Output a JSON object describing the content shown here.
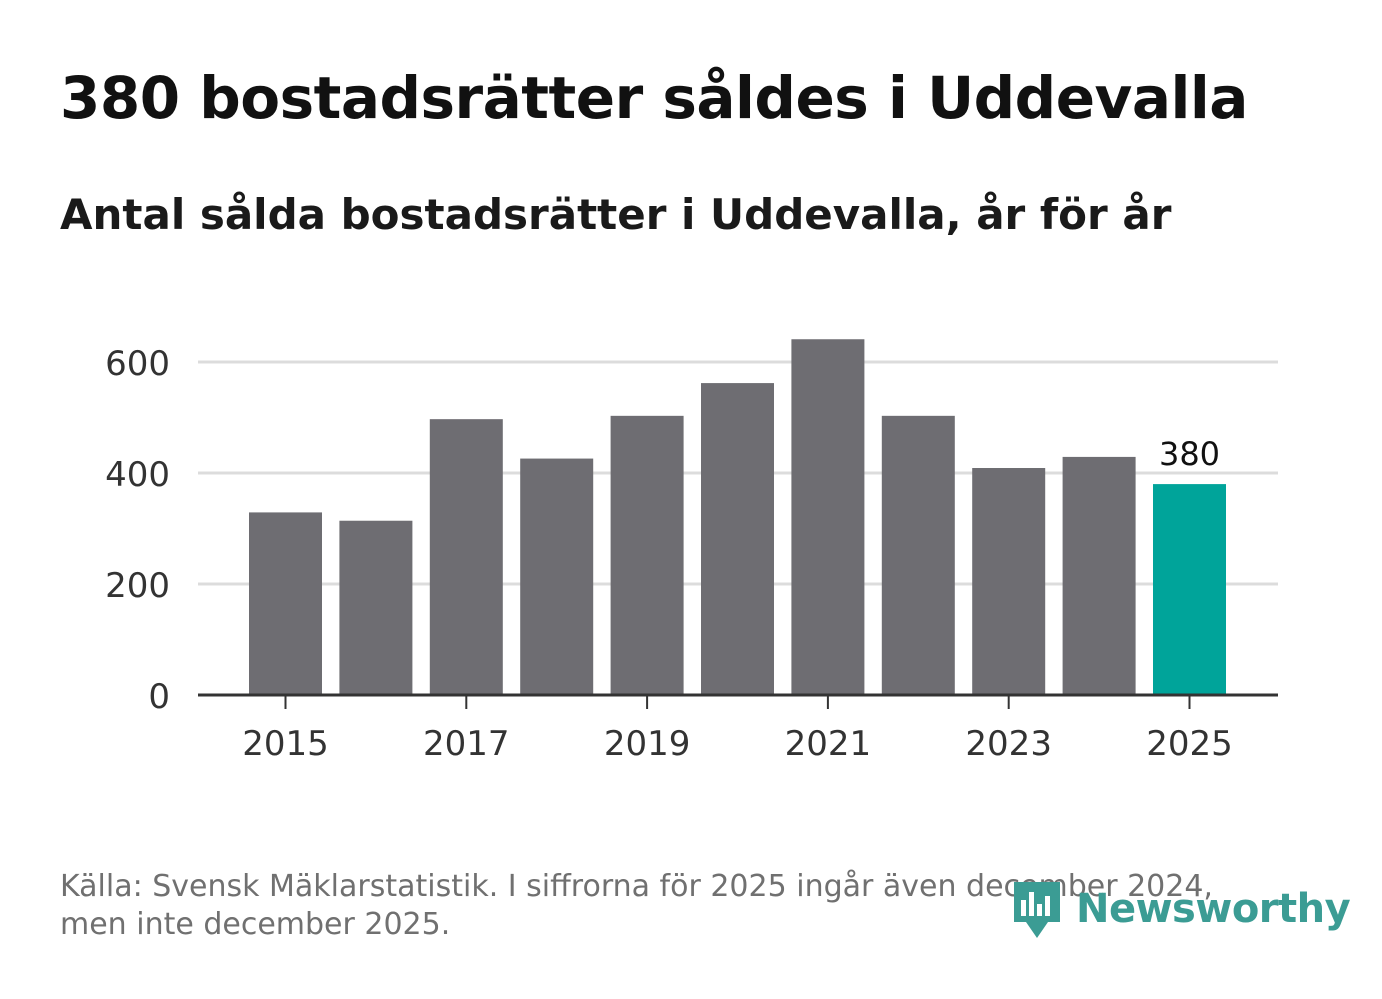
{
  "title": "380 bostadsrätter såldes i Uddevalla",
  "subtitle": "Antal sålda bostadsrätter i Uddevalla, år för år",
  "footnote_line1": "Källa: Svensk Mäklarstatistik. I siffrorna för 2025 ingår även december 2024,",
  "footnote_line2": "men inte december 2025.",
  "logo_text": "Newsworthy",
  "colors": {
    "bar": "#6e6d72",
    "highlight": "#00a49a",
    "grid": "#dcdcdc",
    "axis": "#333333",
    "brand": "#3b9c94"
  },
  "chart_data": {
    "type": "bar",
    "title": "Antal sålda bostadsrätter i Uddevalla, år för år",
    "xlabel": "",
    "ylabel": "",
    "categories": [
      "2015",
      "2016",
      "2017",
      "2018",
      "2019",
      "2020",
      "2021",
      "2022",
      "2023",
      "2024",
      "2025"
    ],
    "values": [
      329,
      314,
      497,
      426,
      503,
      562,
      641,
      503,
      409,
      429,
      380
    ],
    "highlight_index": 10,
    "highlight_label": "380",
    "ylim": [
      0,
      700
    ],
    "yticks": [
      0,
      200,
      400,
      600
    ],
    "ytick_labels": [
      "0",
      "200",
      "400",
      "600"
    ],
    "xticks": [
      "2015",
      "2017",
      "2019",
      "2021",
      "2023",
      "2025"
    ],
    "grid": true
  }
}
